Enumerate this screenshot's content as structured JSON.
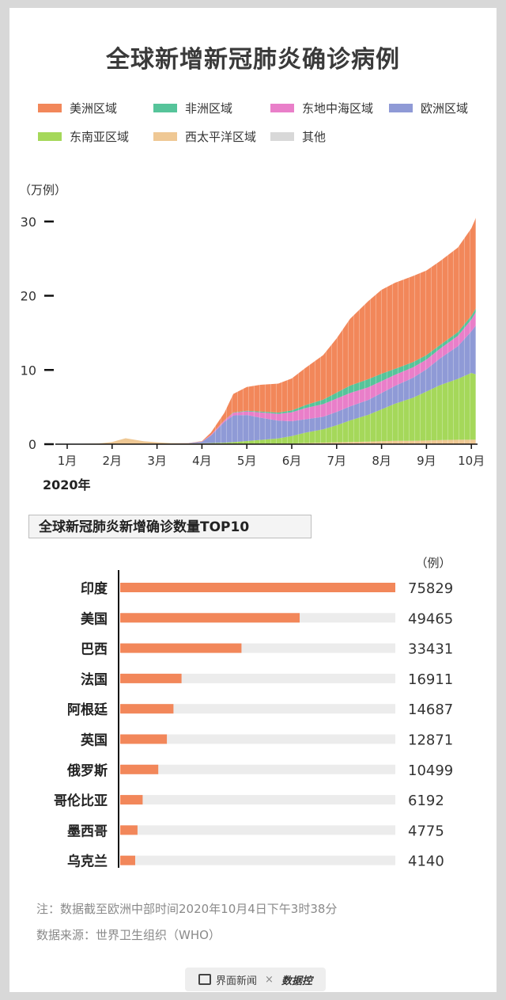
{
  "title": "全球新增新冠肺炎确诊病例",
  "legend": [
    {
      "label": "美洲区域",
      "color": "#f2875a"
    },
    {
      "label": "非洲区域",
      "color": "#56c49a"
    },
    {
      "label": "东地中海区域",
      "color": "#e97fc9"
    },
    {
      "label": "欧洲区域",
      "color": "#8f9ad6"
    },
    {
      "label": "东南亚区域",
      "color": "#a5d85a"
    },
    {
      "label": "西太平洋区域",
      "color": "#efc894"
    },
    {
      "label": "其他",
      "color": "#d8d8d8"
    }
  ],
  "chart_data": [
    {
      "type": "area",
      "stacked": true,
      "ylabel": "（万例）",
      "ylim": [
        0,
        32
      ],
      "yticks": [
        "0",
        "10",
        "20",
        "30"
      ],
      "xticks": [
        "1月",
        "2月",
        "3月",
        "4月",
        "5月",
        "6月",
        "7月",
        "8月",
        "9月",
        "10月"
      ],
      "x_year_label": "2020年",
      "x_month_index": [
        0.0,
        0.3,
        0.7,
        1.0,
        1.3,
        1.7,
        2.0,
        2.3,
        2.7,
        3.0,
        3.2,
        3.5,
        3.7,
        4.0,
        4.3,
        4.7,
        5.0,
        5.3,
        5.7,
        6.0,
        6.3,
        6.7,
        7.0,
        7.3,
        7.7,
        8.0,
        8.3,
        8.7,
        9.0,
        9.1
      ],
      "series": [
        {
          "name": "西太平洋区域",
          "color": "#efc894",
          "values": [
            0.05,
            0.06,
            0.1,
            0.3,
            0.8,
            0.4,
            0.25,
            0.15,
            0.12,
            0.1,
            0.1,
            0.1,
            0.08,
            0.08,
            0.08,
            0.08,
            0.1,
            0.15,
            0.2,
            0.25,
            0.3,
            0.35,
            0.4,
            0.45,
            0.45,
            0.5,
            0.55,
            0.6,
            0.6,
            0.6
          ]
        },
        {
          "name": "东南亚区域",
          "color": "#a5d85a",
          "values": [
            0,
            0,
            0,
            0,
            0,
            0,
            0,
            0,
            0,
            0.02,
            0.05,
            0.1,
            0.2,
            0.35,
            0.5,
            0.7,
            1.0,
            1.4,
            1.8,
            2.3,
            2.9,
            3.6,
            4.3,
            5.0,
            5.8,
            6.6,
            7.4,
            8.2,
            9.0,
            8.8
          ]
        },
        {
          "name": "欧洲区域",
          "color": "#8f9ad6",
          "values": [
            0,
            0,
            0,
            0,
            0,
            0,
            0,
            0,
            0.03,
            0.2,
            1.0,
            2.8,
            3.6,
            3.5,
            3.0,
            2.4,
            2.0,
            1.8,
            1.7,
            1.8,
            1.9,
            2.0,
            2.2,
            2.4,
            2.7,
            3.0,
            3.6,
            4.4,
            5.6,
            6.6
          ]
        },
        {
          "name": "东地中海区域",
          "color": "#e97fc9",
          "values": [
            0,
            0,
            0,
            0,
            0,
            0,
            0,
            0,
            0,
            0.03,
            0.1,
            0.2,
            0.35,
            0.5,
            0.7,
            0.9,
            1.2,
            1.5,
            1.7,
            1.8,
            1.8,
            1.7,
            1.6,
            1.5,
            1.4,
            1.3,
            1.3,
            1.4,
            1.6,
            1.8
          ]
        },
        {
          "name": "非洲区域",
          "color": "#56c49a",
          "values": [
            0,
            0,
            0,
            0,
            0,
            0,
            0,
            0,
            0,
            0,
            0.01,
            0.03,
            0.05,
            0.08,
            0.12,
            0.18,
            0.25,
            0.4,
            0.6,
            0.8,
            1.0,
            1.1,
            1.0,
            0.8,
            0.7,
            0.6,
            0.5,
            0.5,
            0.5,
            0.5
          ]
        },
        {
          "name": "美洲区域",
          "color": "#f2875a",
          "values": [
            0,
            0,
            0,
            0,
            0,
            0,
            0,
            0,
            0.01,
            0.05,
            0.3,
            1.0,
            2.5,
            3.2,
            3.6,
            3.9,
            4.3,
            5.0,
            6.0,
            7.3,
            9.0,
            10.5,
            11.3,
            11.6,
            11.6,
            11.4,
            11.3,
            11.4,
            11.8,
            12.2
          ]
        },
        {
          "name": "其他",
          "color": "#d8d8d8",
          "values": [
            0,
            0,
            0,
            0,
            0,
            0,
            0,
            0,
            0,
            0,
            0,
            0,
            0,
            0,
            0,
            0,
            0,
            0,
            0,
            0,
            0,
            0,
            0,
            0,
            0,
            0,
            0,
            0,
            0,
            0
          ]
        }
      ]
    },
    {
      "type": "bar",
      "orientation": "horizontal",
      "title": "全球新冠肺炎新增确诊数量TOP10",
      "unit": "（例）",
      "categories": [
        "印度",
        "美国",
        "巴西",
        "法国",
        "阿根廷",
        "英国",
        "俄罗斯",
        "哥伦比亚",
        "墨西哥",
        "乌克兰"
      ],
      "values": [
        75829,
        49465,
        33431,
        16911,
        14687,
        12871,
        10499,
        6192,
        4775,
        4140
      ],
      "xlim": [
        0,
        75829
      ],
      "bar_color": "#f2875a",
      "track_color": "#ececec"
    }
  ],
  "notes": {
    "line1": "注：数据截至欧洲中部时间2020年10月4日下午3时38分",
    "line2": "数据来源：世界卫生组织（WHO）"
  },
  "footer": {
    "brand": "界面新闻",
    "sep": "×",
    "partner": "数据控"
  }
}
